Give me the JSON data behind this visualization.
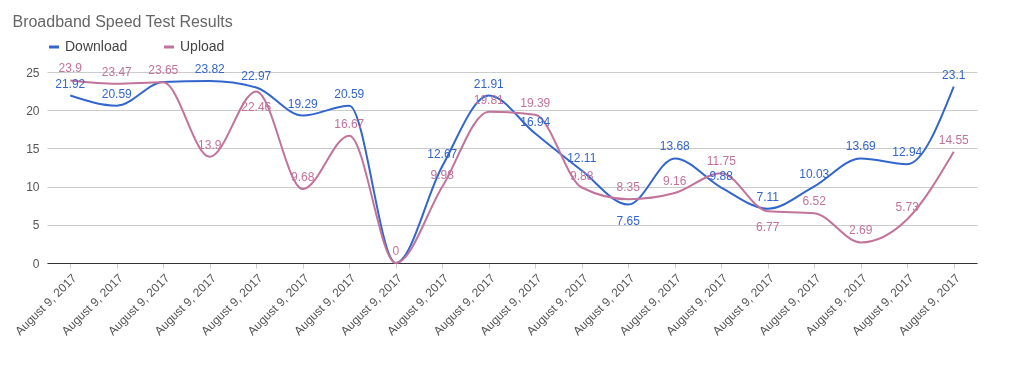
{
  "chart_data": {
    "type": "line",
    "title": "Broadband Speed Test Results",
    "categories": [
      "August 9, 2017",
      "August 9, 2017",
      "August 9, 2017",
      "August 9, 2017",
      "August 9, 2017",
      "August 9, 2017",
      "August 9, 2017",
      "August 9, 2017",
      "August 9, 2017",
      "August 9, 2017",
      "August 9, 2017",
      "August 9, 2017",
      "August 9, 2017",
      "August 9, 2017",
      "August 9, 2017",
      "August 9, 2017",
      "August 9, 2017",
      "August 9, 2017",
      "August 9, 2017",
      "August 9, 2017"
    ],
    "series": [
      {
        "name": "Download",
        "color": "#3366cc",
        "values": [
          21.92,
          20.59,
          23.7,
          23.82,
          22.97,
          19.29,
          20.59,
          0,
          12.67,
          21.91,
          16.94,
          12.11,
          7.65,
          13.68,
          9.88,
          7.11,
          10.03,
          13.69,
          12.94,
          23.1
        ],
        "value_labels": [
          "21.92",
          "20.59",
          null,
          "23.82",
          "22.97",
          "19.29",
          "20.59",
          null,
          "12.67",
          "21.91",
          "16.94",
          "12.11",
          "7.65",
          "13.68",
          "9.88",
          "7.11",
          "10.03",
          "13.69",
          "12.94",
          "23.1"
        ]
      },
      {
        "name": "Upload",
        "color": "#c2739b",
        "values": [
          23.9,
          23.47,
          23.65,
          13.9,
          22.46,
          9.68,
          16.67,
          0,
          9.98,
          19.81,
          19.39,
          9.88,
          8.35,
          9.16,
          11.75,
          6.77,
          6.52,
          2.69,
          5.73,
          14.55
        ],
        "value_labels": [
          "23.9",
          "23.47",
          "23.65",
          "13.9",
          "22.46",
          "9.68",
          "16.67",
          "0",
          "9.98",
          "19.81",
          "19.39",
          "9.88",
          "8.35",
          "9.16",
          "11.75",
          "6.77",
          "6.52",
          "2.69",
          "5.73",
          "14.55"
        ]
      }
    ],
    "ylim": [
      0,
      25
    ],
    "yticks": [
      0,
      5,
      10,
      15,
      20,
      25
    ],
    "grid": "y",
    "legend": "top",
    "marker": "none",
    "line_style": "solid"
  }
}
